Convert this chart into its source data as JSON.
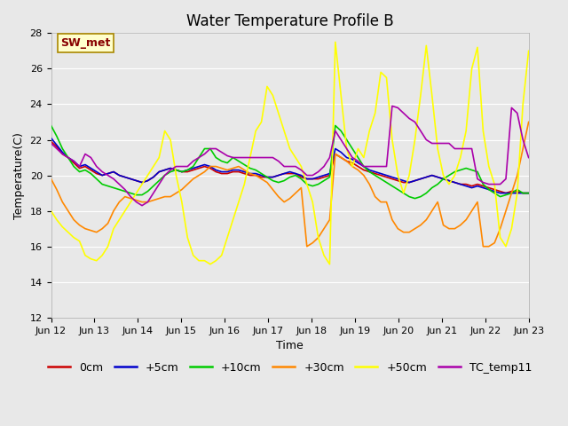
{
  "title": "Water Temperature Profile B",
  "xlabel": "Time",
  "ylabel": "Temperature(C)",
  "ylim": [
    12,
    28
  ],
  "xlim": [
    0,
    11
  ],
  "x_tick_labels": [
    "Jun 12",
    "Jun 13",
    "Jun 14",
    "Jun 15",
    "Jun 16",
    "Jun 17",
    "Jun 18",
    "Jun 19",
    "Jun 20",
    "Jun 21",
    "Jun 22",
    "Jun 23"
  ],
  "annotation_text": "SW_met",
  "bg_color": "#E8E8E8",
  "grid_color": "white",
  "title_fontsize": 12,
  "axis_fontsize": 9,
  "tick_fontsize": 8,
  "legend_fontsize": 9,
  "series": {
    "0cm": {
      "color": "#CC0000",
      "y": [
        21.9,
        21.6,
        21.2,
        21.0,
        20.7,
        20.4,
        20.5,
        20.3,
        20.1,
        20.0,
        20.1,
        20.2,
        20.0,
        19.9,
        19.8,
        19.7,
        19.6,
        19.7,
        19.9,
        20.2,
        20.3,
        20.4,
        20.3,
        20.2,
        20.2,
        20.3,
        20.4,
        20.5,
        20.4,
        20.2,
        20.1,
        20.1,
        20.2,
        20.2,
        20.1,
        20.0,
        20.0,
        19.9,
        19.9,
        19.9,
        20.0,
        20.1,
        20.1,
        20.1,
        19.9,
        19.8,
        19.8,
        19.8,
        19.9,
        20.0,
        21.2,
        21.0,
        20.8,
        20.7,
        20.5,
        20.3,
        20.2,
        20.1,
        20.0,
        19.9,
        19.8,
        19.7,
        19.6,
        19.6,
        19.7,
        19.8,
        19.9,
        20.0,
        19.9,
        19.8,
        19.7,
        19.6,
        19.5,
        19.5,
        19.4,
        19.5,
        19.4,
        19.3,
        19.2,
        19.1,
        19.0,
        19.1,
        19.1,
        19.0,
        19.0
      ]
    },
    "+5cm": {
      "color": "#0000CC",
      "y": [
        22.1,
        21.7,
        21.3,
        21.0,
        20.8,
        20.5,
        20.6,
        20.4,
        20.2,
        20.0,
        20.1,
        20.2,
        20.0,
        19.9,
        19.8,
        19.7,
        19.6,
        19.7,
        19.9,
        20.2,
        20.3,
        20.4,
        20.3,
        20.2,
        20.3,
        20.4,
        20.5,
        20.6,
        20.5,
        20.3,
        20.2,
        20.2,
        20.3,
        20.3,
        20.2,
        20.1,
        20.1,
        20.0,
        19.9,
        19.9,
        20.0,
        20.1,
        20.2,
        20.1,
        20.0,
        19.8,
        19.8,
        19.9,
        20.0,
        20.1,
        21.5,
        21.3,
        21.0,
        20.9,
        20.7,
        20.5,
        20.3,
        20.2,
        20.1,
        20.0,
        19.9,
        19.8,
        19.7,
        19.6,
        19.7,
        19.8,
        19.9,
        20.0,
        19.9,
        19.8,
        19.7,
        19.6,
        19.5,
        19.4,
        19.3,
        19.4,
        19.3,
        19.2,
        19.1,
        19.0,
        19.0,
        19.0,
        19.0,
        19.0,
        19.0
      ]
    },
    "+10cm": {
      "color": "#00CC00",
      "y": [
        22.8,
        22.2,
        21.5,
        21.0,
        20.5,
        20.2,
        20.3,
        20.1,
        19.8,
        19.5,
        19.4,
        19.3,
        19.2,
        19.1,
        19.0,
        18.9,
        18.9,
        19.1,
        19.4,
        19.7,
        20.0,
        20.2,
        20.3,
        20.2,
        20.3,
        20.5,
        21.0,
        21.5,
        21.5,
        21.0,
        20.8,
        20.7,
        21.0,
        20.8,
        20.6,
        20.4,
        20.3,
        20.1,
        19.9,
        19.7,
        19.6,
        19.7,
        19.9,
        20.0,
        19.8,
        19.5,
        19.4,
        19.5,
        19.7,
        19.9,
        22.8,
        22.5,
        22.0,
        21.5,
        21.0,
        20.5,
        20.2,
        20.0,
        19.8,
        19.6,
        19.4,
        19.2,
        19.0,
        18.8,
        18.7,
        18.8,
        19.0,
        19.3,
        19.5,
        19.8,
        20.0,
        20.2,
        20.3,
        20.4,
        20.3,
        20.2,
        19.5,
        19.2,
        19.0,
        18.8,
        18.9,
        19.0,
        19.2,
        19.0,
        19.0
      ]
    },
    "+30cm": {
      "color": "#FF8800",
      "y": [
        19.8,
        19.2,
        18.5,
        18.0,
        17.5,
        17.2,
        17.0,
        16.9,
        16.8,
        17.0,
        17.3,
        18.0,
        18.5,
        18.8,
        18.7,
        18.6,
        18.5,
        18.5,
        18.6,
        18.7,
        18.8,
        18.8,
        19.0,
        19.2,
        19.5,
        19.8,
        20.0,
        20.2,
        20.5,
        20.5,
        20.4,
        20.3,
        20.4,
        20.5,
        20.3,
        20.1,
        20.0,
        19.8,
        19.6,
        19.2,
        18.8,
        18.5,
        18.7,
        19.0,
        19.3,
        16.0,
        16.2,
        16.5,
        17.0,
        17.5,
        21.2,
        21.0,
        20.8,
        20.5,
        20.3,
        20.0,
        19.5,
        18.8,
        18.5,
        18.5,
        17.5,
        17.0,
        16.8,
        16.8,
        17.0,
        17.2,
        17.5,
        18.0,
        18.5,
        17.2,
        17.0,
        17.0,
        17.2,
        17.5,
        18.0,
        18.5,
        16.0,
        16.0,
        16.2,
        17.0,
        18.0,
        19.0,
        20.0,
        21.5,
        23.0
      ]
    },
    "+50cm": {
      "color": "#FFFF00",
      "y": [
        18.0,
        17.5,
        17.1,
        16.8,
        16.5,
        16.3,
        15.5,
        15.3,
        15.2,
        15.5,
        16.0,
        17.0,
        17.5,
        18.0,
        18.5,
        19.0,
        19.5,
        20.0,
        20.5,
        21.0,
        22.5,
        22.0,
        20.0,
        18.5,
        16.5,
        15.5,
        15.2,
        15.2,
        15.0,
        15.2,
        15.5,
        16.5,
        17.5,
        18.5,
        19.5,
        21.0,
        22.5,
        23.0,
        25.0,
        24.5,
        23.5,
        22.5,
        21.5,
        21.0,
        20.5,
        19.5,
        18.5,
        16.5,
        15.5,
        15.0,
        27.5,
        24.5,
        21.5,
        20.5,
        21.5,
        21.0,
        22.5,
        23.5,
        25.8,
        25.5,
        22.0,
        20.0,
        19.0,
        20.0,
        22.0,
        24.5,
        27.3,
        24.5,
        21.5,
        20.0,
        19.5,
        20.0,
        21.0,
        22.5,
        26.0,
        27.2,
        22.5,
        20.5,
        19.5,
        16.5,
        16.0,
        17.0,
        19.0,
        24.0,
        27.0
      ]
    },
    "TC_temp11": {
      "color": "#AA00AA",
      "y": [
        21.8,
        21.5,
        21.2,
        21.0,
        20.8,
        20.5,
        21.2,
        21.0,
        20.5,
        20.2,
        20.0,
        19.8,
        19.5,
        19.2,
        18.8,
        18.5,
        18.3,
        18.5,
        19.0,
        19.5,
        20.0,
        20.3,
        20.5,
        20.5,
        20.5,
        20.8,
        21.0,
        21.2,
        21.5,
        21.5,
        21.3,
        21.1,
        21.0,
        21.0,
        21.0,
        21.0,
        21.0,
        21.0,
        21.0,
        21.0,
        20.8,
        20.5,
        20.5,
        20.5,
        20.3,
        20.0,
        20.0,
        20.2,
        20.5,
        21.0,
        22.5,
        22.0,
        21.5,
        21.0,
        20.8,
        20.5,
        20.5,
        20.5,
        20.5,
        20.5,
        23.9,
        23.8,
        23.5,
        23.2,
        23.0,
        22.5,
        22.0,
        21.8,
        21.8,
        21.8,
        21.8,
        21.5,
        21.5,
        21.5,
        21.5,
        19.8,
        19.6,
        19.5,
        19.5,
        19.5,
        19.8,
        23.8,
        23.5,
        22.0,
        21.0
      ]
    }
  }
}
